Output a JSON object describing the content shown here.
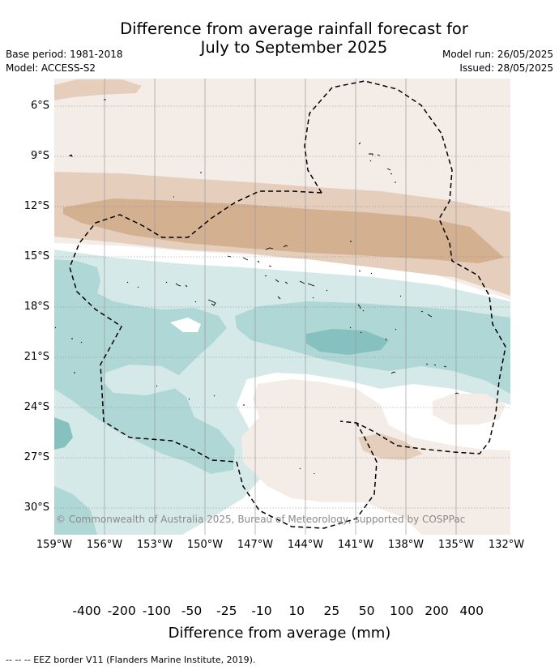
{
  "header": {
    "title_line1": "Difference from average rainfall forecast for",
    "title_line2": "July to September 2025",
    "base_period": "Base period: 1981-2018",
    "model": "Model: ACCESS-S2",
    "model_run": "Model run: 26/05/2025",
    "issued": "Issued: 28/05/2025"
  },
  "map": {
    "lat_labels": [
      "6°S",
      "9°S",
      "12°S",
      "15°S",
      "18°S",
      "21°S",
      "24°S",
      "27°S",
      "30°S"
    ],
    "lon_labels": [
      "159°W",
      "156°W",
      "153°W",
      "150°W",
      "147°W",
      "144°W",
      "141°W",
      "138°W",
      "135°W",
      "132°W"
    ],
    "copyright": "© Commonwealth of Australia 2025, Bureau of Meteorology, supported by COSPPac",
    "colors": {
      "dry_400": "#a9743b",
      "dry_200": "#c29468",
      "dry_100": "#d3b090",
      "dry_50": "#e5cfbc",
      "dry_25": "#f4ece6",
      "neutral": "#ffffff",
      "wet_25": "#d5e9e8",
      "wet_50": "#afd7d6",
      "wet_100": "#86c1bf",
      "wet_200": "#5aaaa9",
      "wet_400": "#329693"
    }
  },
  "colorbar": {
    "ticks": [
      "-400",
      "-200",
      "-100",
      "-50",
      "-25",
      "-10",
      "10",
      "25",
      "50",
      "100",
      "200",
      "400"
    ],
    "title": "Difference from average (mm)"
  },
  "legend": {
    "eez": "--  --  -- EEZ border V11 (Flanders Marine Institute, 2019)."
  }
}
